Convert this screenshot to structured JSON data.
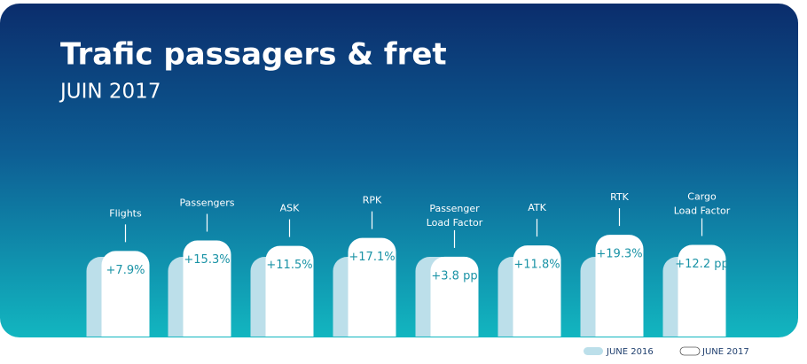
{
  "chart_data": {
    "type": "bar",
    "title": "Trafic passagers & fret",
    "subtitle": "JUIN 2017",
    "categories": [
      "Flights",
      "Passengers",
      "ASK",
      "RPK",
      "Passenger\nLoad Factor",
      "ATK",
      "RTK",
      "Cargo\nLoad Factor"
    ],
    "series": [
      {
        "name": "JUNE 2016",
        "color": "#bcdfea"
      },
      {
        "name": "JUNE 2017",
        "color": "#ffffff",
        "values": [
          7.9,
          15.3,
          11.5,
          17.1,
          3.8,
          11.8,
          19.3,
          12.2
        ],
        "value_labels": [
          "+7.9%",
          "+15.3%",
          "+11.5%",
          "+17.1%",
          "+3.8 pp",
          "+11.8%",
          "+19.3%",
          "+12.2 pp"
        ]
      }
    ]
  }
}
